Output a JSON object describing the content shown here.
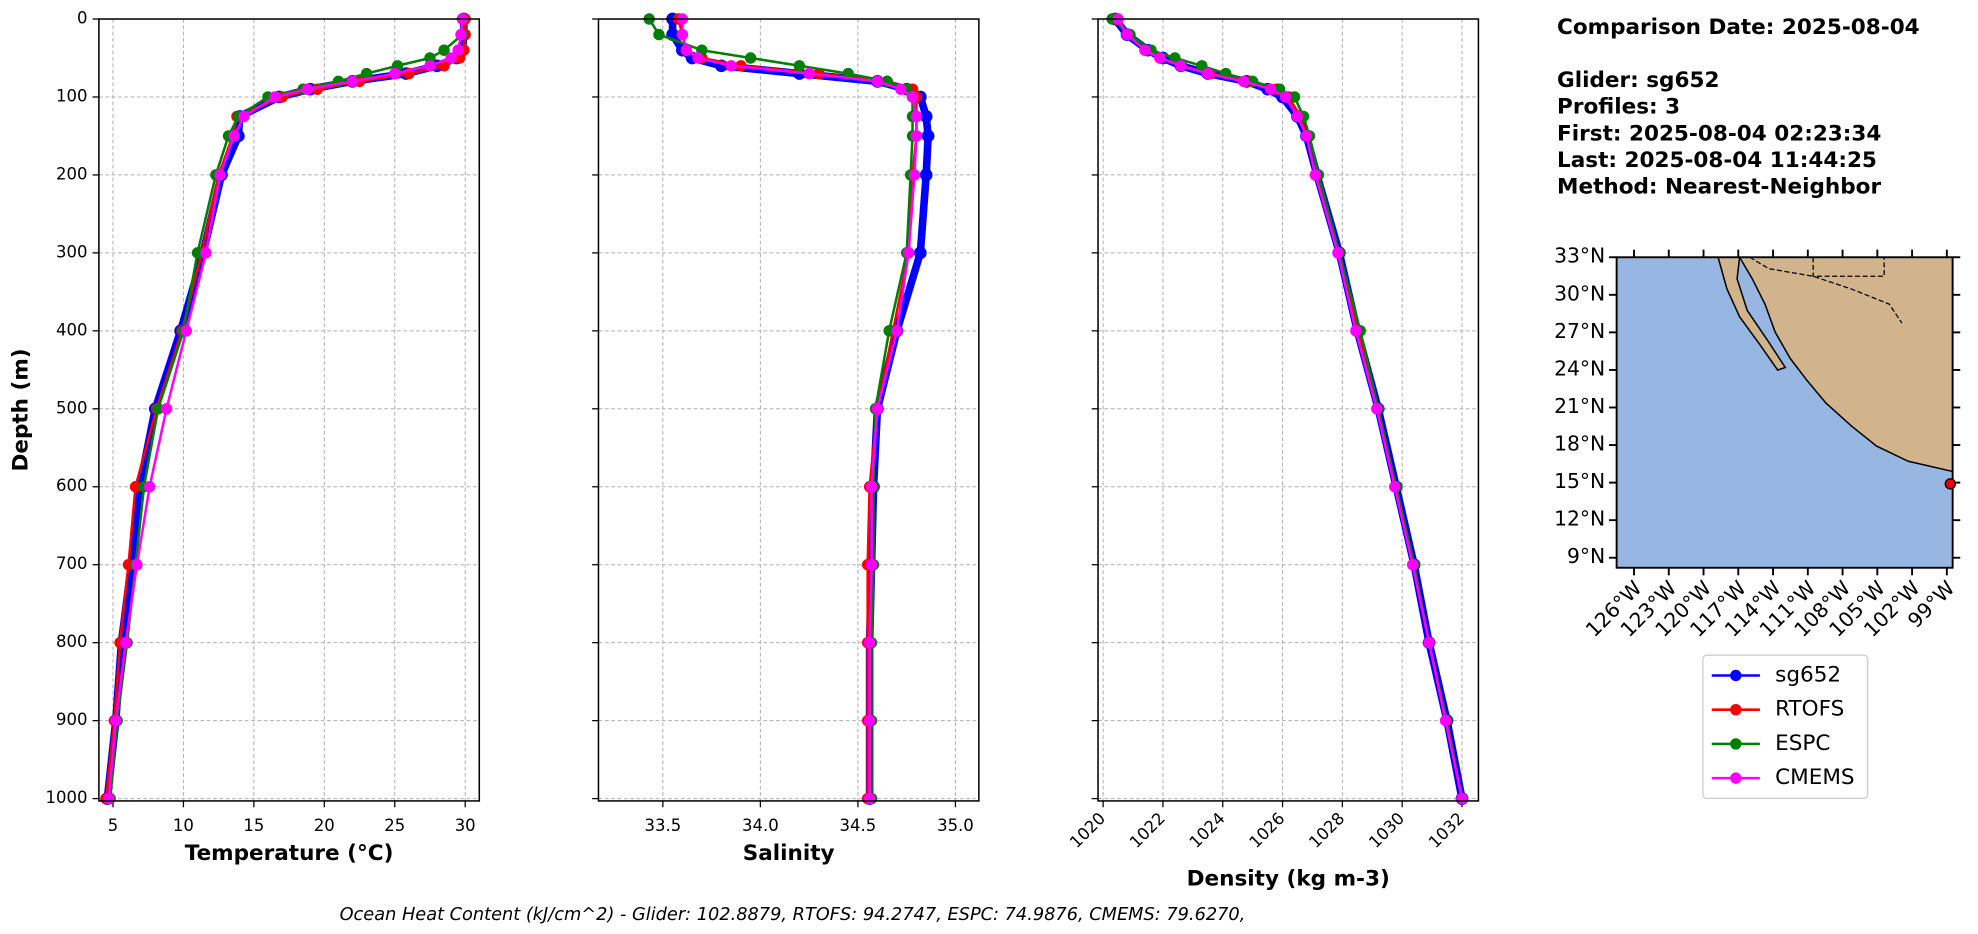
{
  "chart_data": [
    {
      "type": "line",
      "x_label": "Temperature (°C)",
      "y_label": "Depth (m)",
      "y": [
        0,
        20,
        40,
        50,
        60,
        70,
        80,
        90,
        100,
        125,
        150,
        200,
        300,
        400,
        500,
        600,
        700,
        800,
        900,
        1000
      ],
      "series": [
        {
          "name": "sg652",
          "color": "#0000ff",
          "values": [
            29.9,
            29.9,
            29.8,
            29.4,
            28,
            25.8,
            22,
            19,
            16.8,
            14,
            13.9,
            12.7,
            11.4,
            9.8,
            8,
            6.9,
            6.3,
            5.6,
            5.2,
            4.6
          ]
        },
        {
          "name": "RTOFS",
          "color": "#ff0000",
          "values": [
            30,
            30,
            29.9,
            29.6,
            28.5,
            26,
            22.5,
            19.5,
            17,
            13.8,
            13.5,
            12.5,
            11.3,
            9.9,
            8.1,
            6.6,
            6.1,
            5.5,
            5.1,
            4.5
          ]
        },
        {
          "name": "ESPC",
          "color": "#008000",
          "values": [
            29.8,
            29.8,
            28.5,
            27.5,
            25.2,
            23,
            21,
            18.5,
            16,
            13.9,
            13.2,
            12.3,
            11,
            10,
            8.2,
            7.2,
            6.6,
            6,
            5.3,
            4.8
          ]
        },
        {
          "name": "CMEMS",
          "color": "#ff00ff",
          "values": [
            29.8,
            29.7,
            29.5,
            29,
            27.5,
            25,
            22,
            18.8,
            16.5,
            14.3,
            13.6,
            12.6,
            11.6,
            10.2,
            8.8,
            7.6,
            6.7,
            5.9,
            5.2,
            4.7
          ]
        }
      ],
      "xlim": [
        4,
        31
      ],
      "xticks": [
        5,
        10,
        15,
        20,
        25,
        30
      ],
      "ylim": [
        0,
        1003
      ],
      "y_inverted": true,
      "yticks": [
        0,
        100,
        200,
        300,
        400,
        500,
        600,
        700,
        800,
        900,
        1000
      ],
      "grid": true
    },
    {
      "type": "line",
      "x_label": "Salinity",
      "y": [
        0,
        20,
        40,
        50,
        60,
        70,
        80,
        90,
        100,
        125,
        150,
        200,
        300,
        400,
        500,
        600,
        700,
        800,
        900,
        1000
      ],
      "series": [
        {
          "name": "sg652",
          "color": "#0000ff",
          "values": [
            33.55,
            33.55,
            33.6,
            33.65,
            33.8,
            34.2,
            34.6,
            34.75,
            34.82,
            34.85,
            34.86,
            34.85,
            34.82,
            34.7,
            34.6,
            34.58,
            34.57,
            34.56,
            34.56,
            34.56
          ]
        },
        {
          "name": "RTOFS",
          "color": "#ff0000",
          "values": [
            33.58,
            33.6,
            33.62,
            33.7,
            33.9,
            34.3,
            34.65,
            34.78,
            34.8,
            34.8,
            34.8,
            34.78,
            34.76,
            34.68,
            34.6,
            34.56,
            34.55,
            34.55,
            34.55,
            34.55
          ]
        },
        {
          "name": "ESPC",
          "color": "#008000",
          "values": [
            33.43,
            33.48,
            33.7,
            33.95,
            34.2,
            34.45,
            34.65,
            34.75,
            34.78,
            34.78,
            34.78,
            34.77,
            34.75,
            34.66,
            34.59,
            34.58,
            34.58,
            34.57,
            34.57,
            34.57
          ]
        },
        {
          "name": "CMEMS",
          "color": "#ff00ff",
          "values": [
            33.6,
            33.6,
            33.62,
            33.68,
            33.85,
            34.25,
            34.6,
            34.72,
            34.78,
            34.8,
            34.8,
            34.79,
            34.76,
            34.7,
            34.6,
            34.57,
            34.57,
            34.56,
            34.56,
            34.56
          ]
        }
      ],
      "xlim": [
        33.17,
        35.12
      ],
      "xticks": [
        33.5,
        {
          "value": 34,
          "label": "34.0"
        },
        34.5,
        {
          "value": 35,
          "label": "35.0"
        }
      ],
      "ylim": [
        0,
        1003
      ],
      "y_inverted": true,
      "yticks": [
        0,
        100,
        200,
        300,
        400,
        500,
        600,
        700,
        800,
        900,
        1000
      ],
      "grid": true
    },
    {
      "type": "line",
      "x_label": "Density (kg m-3)",
      "xtick_rotation": 45,
      "y": [
        0,
        20,
        40,
        50,
        60,
        70,
        80,
        90,
        100,
        125,
        150,
        200,
        300,
        400,
        500,
        600,
        700,
        800,
        900,
        1000
      ],
      "series": [
        {
          "name": "sg652",
          "color": "#0000ff",
          "values": [
            1020.4,
            1020.8,
            1021.5,
            1022,
            1022.6,
            1023.5,
            1024.8,
            1025.5,
            1026,
            1026.5,
            1026.8,
            1027.15,
            1027.9,
            1028.5,
            1029.2,
            1029.8,
            1030.4,
            1030.9,
            1031.5,
            1032
          ]
        },
        {
          "name": "RTOFS",
          "color": "#ff0000",
          "values": [
            1020.4,
            1020.8,
            1021.4,
            1021.9,
            1022.6,
            1023.6,
            1024.9,
            1025.8,
            1026.2,
            1026.6,
            1026.8,
            1027.1,
            1027.9,
            1028.5,
            1029.2,
            1029.8,
            1030.4,
            1030.9,
            1031.5,
            1032
          ]
        },
        {
          "name": "ESPC",
          "color": "#008000",
          "values": [
            1020.3,
            1020.9,
            1021.6,
            1022.4,
            1023.3,
            1024.1,
            1025,
            1025.9,
            1026.4,
            1026.7,
            1026.9,
            1027.2,
            1027.9,
            1028.6,
            1029.2,
            1029.8,
            1030.4,
            1030.9,
            1031.5,
            1032
          ]
        },
        {
          "name": "CMEMS",
          "color": "#ff00ff",
          "values": [
            1020.5,
            1020.8,
            1021.4,
            1021.9,
            1022.6,
            1023.5,
            1024.7,
            1025.6,
            1026.1,
            1026.5,
            1026.8,
            1027.1,
            1027.85,
            1028.45,
            1029.15,
            1029.75,
            1030.35,
            1030.9,
            1031.45,
            1032
          ]
        }
      ],
      "xlim": [
        1019.83,
        1032.55
      ],
      "xticks": [
        1020,
        1022,
        1024,
        1026,
        1028,
        1030,
        1032
      ],
      "ylim": [
        0,
        1003
      ],
      "y_inverted": true,
      "yticks": [
        0,
        100,
        200,
        300,
        400,
        500,
        600,
        700,
        800,
        900,
        1000
      ],
      "grid": true
    }
  ],
  "info": [
    "Comparison Date: 2025-08-04",
    "Glider: sg652",
    "Profiles: 3",
    "First: 2025-08-04 02:23:34",
    "Last: 2025-08-04 11:44:25",
    "Method: Nearest-Neighbor"
  ],
  "map": {
    "lonlim": [
      -127.5,
      -98.5
    ],
    "latlim": [
      8.2,
      33
    ],
    "lat_ticks": [
      {
        "value": 33,
        "label": "33°N"
      },
      {
        "value": 30,
        "label": "30°N"
      },
      {
        "value": 27,
        "label": "27°N"
      },
      {
        "value": 24,
        "label": "24°N"
      },
      {
        "value": 21,
        "label": "21°N"
      },
      {
        "value": 18,
        "label": "18°N"
      },
      {
        "value": 15,
        "label": "15°N"
      },
      {
        "value": 12,
        "label": "12°N"
      },
      {
        "value": 9,
        "label": "9°N"
      }
    ],
    "lon_ticks": [
      {
        "value": -126,
        "label": "126°W"
      },
      {
        "value": -123,
        "label": "123°W"
      },
      {
        "value": -120,
        "label": "120°W"
      },
      {
        "value": -117,
        "label": "117°W"
      },
      {
        "value": -114,
        "label": "114°W"
      },
      {
        "value": -111,
        "label": "111°W"
      },
      {
        "value": -108,
        "label": "108°W"
      },
      {
        "value": -105,
        "label": "105°W"
      },
      {
        "value": -102,
        "label": "102°W"
      },
      {
        "value": -99,
        "label": "99°W"
      }
    ],
    "glider_lon": -98.7,
    "glider_lat": 14.9
  },
  "footer": "Ocean Heat Content (kJ/cm^2) - Glider: 102.8879,  RTOFS: 94.2747,  ESPC: 74.9876,  CMEMS: 79.6270,"
}
